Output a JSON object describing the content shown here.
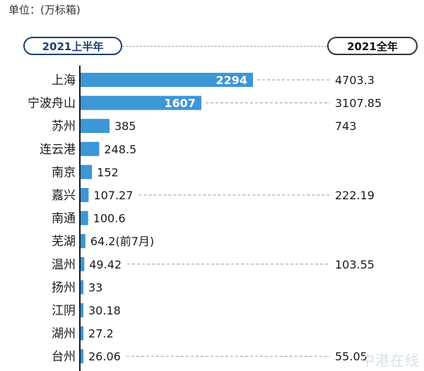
{
  "unit_label": "单位：(万标箱)",
  "header": {
    "left_pill": "2021上半年",
    "right_pill": "2021全年"
  },
  "watermark": "中港在线",
  "colors": {
    "bar": "#3d96d5",
    "pill_border": "#1d3f73"
  },
  "chart_data": {
    "type": "bar",
    "orientation": "horizontal",
    "categories": [
      "上海",
      "宁波舟山",
      "苏州",
      "连云港",
      "南京",
      "嘉兴",
      "南通",
      "芜湖",
      "温州",
      "扬州",
      "江阴",
      "湖州",
      "台州"
    ],
    "series": [
      {
        "values": [
          2294,
          1607,
          385,
          248.5,
          152,
          107.27,
          100.6,
          64.2,
          49.42,
          33,
          30.18,
          27.2,
          26.06
        ]
      }
    ],
    "value_labels": [
      "2294",
      "1607",
      "385",
      "248.5",
      "152",
      "107.27",
      "100.6",
      "64.2(前7月)",
      "49.42",
      "33",
      "30.18",
      "27.2",
      "26.06"
    ],
    "full_year_values": [
      4703.3,
      3107.85,
      743,
      null,
      null,
      222.19,
      null,
      null,
      103.55,
      null,
      null,
      null,
      55.05
    ],
    "full_year_labels": [
      "4703.3",
      "3107.85",
      "743",
      "",
      "",
      "222.19",
      "",
      "",
      "103.55",
      "",
      "",
      "",
      "55.05"
    ],
    "full_year_dashed": [
      true,
      true,
      false,
      false,
      false,
      true,
      false,
      false,
      true,
      false,
      false,
      false,
      true
    ],
    "label_inside": [
      true,
      true,
      false,
      false,
      false,
      false,
      false,
      false,
      false,
      false,
      false,
      false,
      false
    ]
  }
}
